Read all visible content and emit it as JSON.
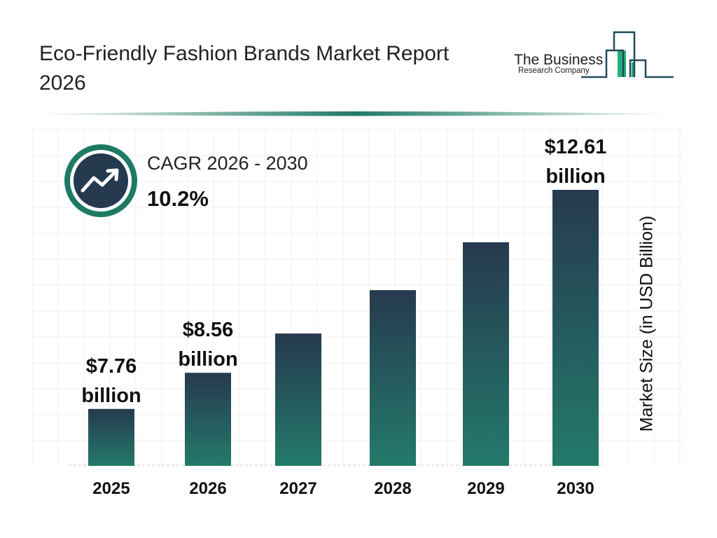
{
  "header": {
    "title": "Eco-Friendly Fashion Brands Market Report 2026"
  },
  "logo": {
    "line1": "The Business",
    "line2": "Research Company"
  },
  "cagr": {
    "label": "CAGR 2026 - 2030",
    "value": "10.2%",
    "icon": "trending-up-icon"
  },
  "colors": {
    "bar_top": "#263a4f",
    "bar_bottom": "#237a6b",
    "accent": "#1f7a64",
    "logo_green": "#22b07d",
    "logo_navy": "#234a5a"
  },
  "chart_data": {
    "type": "bar",
    "title": "",
    "categories": [
      "2025",
      "2026",
      "2027",
      "2028",
      "2029",
      "2030"
    ],
    "values": [
      7.76,
      8.56,
      9.43,
      10.39,
      11.45,
      12.61
    ],
    "data_labels": [
      {
        "index": 0,
        "line1": "$7.76",
        "line2": "billion"
      },
      {
        "index": 1,
        "line1": "$8.56",
        "line2": "billion"
      },
      {
        "index": 5,
        "line1": "$12.61",
        "line2": "billion"
      }
    ],
    "xlabel": "",
    "ylabel": "Market Size (in USD Billion)",
    "ylim": [
      6.5,
      13.2
    ],
    "grid": true,
    "legend": "none"
  }
}
